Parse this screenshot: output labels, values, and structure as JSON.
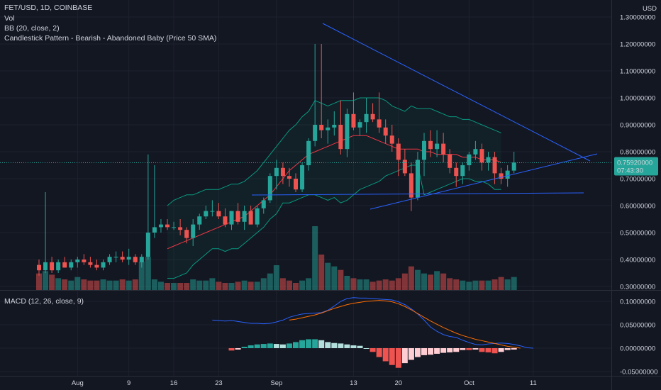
{
  "header": {
    "title": "FET/USD, 1D, COINBASE",
    "indicator_vol": "Vol",
    "indicator_bb": "BB (20, close, 2)",
    "indicator_pattern": "Candlestick Pattern - Bearish - Abandoned Baby (Price 50 SMA)",
    "indicator_macd": "MACD (12, 26, close, 9)"
  },
  "price_axis": {
    "currency": "USD",
    "current_price": "0.75920000",
    "countdown": "07:43:30"
  },
  "colors": {
    "up": "#26a69a",
    "down": "#ef5350",
    "trendline": "#2962ff",
    "bb_band": "#089981",
    "bb_basis": "#f23645",
    "macd_line": "#2962ff",
    "signal_line": "#ff6d00",
    "background": "#131722",
    "grid": "#1e222d"
  },
  "chart_data": [
    {
      "type": "candlestick",
      "title": "FET/USD, 1D, COINBASE",
      "y_unit": "USD",
      "ylim": [
        0.27,
        1.33
      ],
      "yticks": [
        "0.30000000",
        "0.40000000",
        "0.50000000",
        "0.60000000",
        "0.70000000",
        "0.80000000",
        "0.90000000",
        "1.00000000",
        "1.10000000",
        "1.20000000",
        "1.30000000"
      ],
      "ytick_values": [
        0.3,
        0.4,
        0.5,
        0.6,
        0.7,
        0.8,
        0.9,
        1.0,
        1.1,
        1.2,
        1.3
      ],
      "xticks": [
        {
          "label": "Aug",
          "index": 6
        },
        {
          "label": "9",
          "index": 14
        },
        {
          "label": "16",
          "index": 21
        },
        {
          "label": "23",
          "index": 28
        },
        {
          "label": "Sep",
          "index": 37
        },
        {
          "label": "13",
          "index": 49
        },
        {
          "label": "20",
          "index": 56
        },
        {
          "label": "Oct",
          "index": 67
        },
        {
          "label": "11",
          "index": 77
        }
      ],
      "candles": [
        [
          0.38,
          0.4,
          0.34,
          0.36
        ],
        [
          0.36,
          0.65,
          0.35,
          0.39
        ],
        [
          0.39,
          0.41,
          0.35,
          0.36
        ],
        [
          0.36,
          0.4,
          0.35,
          0.39
        ],
        [
          0.39,
          0.41,
          0.37,
          0.37
        ],
        [
          0.37,
          0.4,
          0.36,
          0.39
        ],
        [
          0.39,
          0.41,
          0.37,
          0.4
        ],
        [
          0.4,
          0.42,
          0.38,
          0.39
        ],
        [
          0.39,
          0.41,
          0.37,
          0.38
        ],
        [
          0.38,
          0.4,
          0.36,
          0.37
        ],
        [
          0.37,
          0.4,
          0.36,
          0.39
        ],
        [
          0.39,
          0.42,
          0.38,
          0.41
        ],
        [
          0.41,
          0.43,
          0.39,
          0.41
        ],
        [
          0.41,
          0.43,
          0.39,
          0.4
        ],
        [
          0.4,
          0.44,
          0.38,
          0.41
        ],
        [
          0.41,
          0.42,
          0.38,
          0.39
        ],
        [
          0.39,
          0.42,
          0.37,
          0.41
        ],
        [
          0.41,
          0.79,
          0.4,
          0.5
        ],
        [
          0.5,
          0.75,
          0.48,
          0.52
        ],
        [
          0.52,
          0.55,
          0.5,
          0.53
        ],
        [
          0.53,
          0.55,
          0.51,
          0.52
        ],
        [
          0.52,
          0.54,
          0.51,
          0.52
        ],
        [
          0.52,
          0.55,
          0.49,
          0.51
        ],
        [
          0.51,
          0.52,
          0.46,
          0.48
        ],
        [
          0.48,
          0.55,
          0.45,
          0.53
        ],
        [
          0.53,
          0.57,
          0.51,
          0.56
        ],
        [
          0.56,
          0.6,
          0.55,
          0.58
        ],
        [
          0.58,
          0.62,
          0.56,
          0.58
        ],
        [
          0.58,
          0.61,
          0.55,
          0.56
        ],
        [
          0.56,
          0.59,
          0.52,
          0.53
        ],
        [
          0.53,
          0.58,
          0.51,
          0.58
        ],
        [
          0.58,
          0.61,
          0.53,
          0.54
        ],
        [
          0.54,
          0.6,
          0.51,
          0.58
        ],
        [
          0.58,
          0.6,
          0.53,
          0.53
        ],
        [
          0.53,
          0.6,
          0.52,
          0.59
        ],
        [
          0.59,
          0.63,
          0.57,
          0.62
        ],
        [
          0.62,
          0.72,
          0.61,
          0.71
        ],
        [
          0.71,
          0.77,
          0.66,
          0.74
        ],
        [
          0.74,
          0.76,
          0.68,
          0.71
        ],
        [
          0.71,
          0.74,
          0.67,
          0.7
        ],
        [
          0.7,
          0.72,
          0.65,
          0.66
        ],
        [
          0.66,
          0.76,
          0.65,
          0.75
        ],
        [
          0.75,
          0.85,
          0.73,
          0.84
        ],
        [
          0.84,
          1.2,
          0.82,
          0.9
        ],
        [
          0.9,
          1.2,
          0.85,
          0.88
        ],
        [
          0.88,
          0.92,
          0.83,
          0.89
        ],
        [
          0.89,
          0.95,
          0.86,
          0.9
        ],
        [
          0.9,
          0.99,
          0.79,
          0.81
        ],
        [
          0.81,
          0.96,
          0.78,
          0.94
        ],
        [
          0.94,
          1.02,
          0.88,
          0.89
        ],
        [
          0.89,
          0.92,
          0.86,
          0.91
        ],
        [
          0.91,
          1.0,
          0.87,
          0.94
        ],
        [
          0.94,
          0.98,
          0.91,
          0.92
        ],
        [
          0.92,
          1.02,
          0.87,
          0.89
        ],
        [
          0.89,
          0.92,
          0.83,
          0.86
        ],
        [
          0.86,
          0.9,
          0.8,
          0.83
        ],
        [
          0.83,
          0.85,
          0.71,
          0.77
        ],
        [
          0.77,
          0.81,
          0.71,
          0.72
        ],
        [
          0.72,
          0.76,
          0.58,
          0.63
        ],
        [
          0.63,
          0.8,
          0.62,
          0.77
        ],
        [
          0.77,
          0.87,
          0.71,
          0.84
        ],
        [
          0.84,
          0.88,
          0.78,
          0.81
        ],
        [
          0.81,
          0.88,
          0.78,
          0.83
        ],
        [
          0.83,
          0.87,
          0.76,
          0.79
        ],
        [
          0.79,
          0.81,
          0.72,
          0.74
        ],
        [
          0.74,
          0.76,
          0.67,
          0.71
        ],
        [
          0.71,
          0.76,
          0.68,
          0.75
        ],
        [
          0.75,
          0.8,
          0.73,
          0.79
        ],
        [
          0.79,
          0.84,
          0.77,
          0.81
        ],
        [
          0.81,
          0.83,
          0.73,
          0.76
        ],
        [
          0.76,
          0.8,
          0.73,
          0.78
        ],
        [
          0.78,
          0.8,
          0.68,
          0.72
        ],
        [
          0.72,
          0.74,
          0.68,
          0.7
        ],
        [
          0.7,
          0.75,
          0.67,
          0.73
        ],
        [
          0.73,
          0.8,
          0.72,
          0.76
        ]
      ],
      "bb_upper": [
        null,
        null,
        null,
        null,
        null,
        null,
        null,
        null,
        null,
        null,
        null,
        null,
        null,
        null,
        null,
        null,
        null,
        null,
        null,
        null,
        0.6,
        0.62,
        0.63,
        0.64,
        0.64,
        0.65,
        0.66,
        0.66,
        0.66,
        0.67,
        0.68,
        0.68,
        0.69,
        0.71,
        0.73,
        0.76,
        0.79,
        0.82,
        0.85,
        0.88,
        0.9,
        0.93,
        0.95,
        0.99,
        0.98,
        0.97,
        0.98,
        0.99,
        0.99,
        0.99,
        1.0,
        1.0,
        1.0,
        1.0,
        0.99,
        0.97,
        0.96,
        0.95,
        0.97,
        0.96,
        0.96,
        0.96,
        0.95,
        0.94,
        0.93,
        0.93,
        0.92,
        0.92,
        0.91,
        0.9,
        0.89,
        0.88,
        0.87
      ],
      "bb_basis": [
        null,
        null,
        null,
        null,
        null,
        null,
        null,
        null,
        null,
        null,
        null,
        null,
        null,
        null,
        null,
        null,
        null,
        null,
        null,
        null,
        0.44,
        0.45,
        0.46,
        0.47,
        0.48,
        0.49,
        0.5,
        0.51,
        0.52,
        0.53,
        0.54,
        0.55,
        0.56,
        0.58,
        0.6,
        0.62,
        0.64,
        0.67,
        0.7,
        0.73,
        0.75,
        0.77,
        0.79,
        0.8,
        0.81,
        0.82,
        0.83,
        0.84,
        0.85,
        0.86,
        0.86,
        0.86,
        0.85,
        0.84,
        0.83,
        0.82,
        0.81,
        0.81,
        0.81,
        0.81,
        0.8,
        0.8,
        0.79,
        0.79,
        0.79,
        0.79,
        0.78,
        0.78,
        0.78,
        0.77,
        0.77,
        0.77,
        0.76
      ],
      "bb_lower": [
        null,
        null,
        null,
        null,
        null,
        null,
        null,
        null,
        null,
        null,
        null,
        null,
        null,
        null,
        null,
        null,
        null,
        null,
        null,
        null,
        0.33,
        0.33,
        0.34,
        0.35,
        0.38,
        0.4,
        0.42,
        0.44,
        0.44,
        0.43,
        0.44,
        0.44,
        0.46,
        0.48,
        0.5,
        0.52,
        0.55,
        0.57,
        0.61,
        0.61,
        0.62,
        0.63,
        0.64,
        0.64,
        0.63,
        0.62,
        0.63,
        0.61,
        0.62,
        0.64,
        0.66,
        0.67,
        0.68,
        0.69,
        0.71,
        0.72,
        0.73,
        0.74,
        0.75,
        0.75,
        0.64,
        0.65,
        0.66,
        0.67,
        0.68,
        0.69,
        0.7,
        0.7,
        0.69,
        0.69,
        0.68,
        0.66,
        0.66
      ]
    },
    {
      "type": "bar",
      "title": "Vol",
      "values": [
        14,
        16,
        13,
        10,
        9,
        8,
        11,
        9,
        8,
        8,
        9,
        8,
        8,
        9,
        8,
        9,
        24,
        28,
        9,
        7,
        6,
        6,
        6,
        6,
        9,
        8,
        8,
        10,
        7,
        6,
        6,
        7,
        8,
        7,
        7,
        10,
        14,
        21,
        10,
        8,
        6,
        8,
        10,
        54,
        30,
        23,
        20,
        17,
        12,
        10,
        9,
        9,
        7,
        8,
        9,
        8,
        10,
        14,
        20,
        17,
        14,
        13,
        16,
        14,
        10,
        9,
        8,
        7,
        8,
        8,
        8,
        9,
        11,
        9,
        11
      ],
      "ylim": [
        0,
        60
      ]
    },
    {
      "type": "line",
      "title": "MACD (12, 26, close, 9)",
      "ylim": [
        -0.06,
        0.115
      ],
      "yticks": [
        "0.10000000",
        "0.05000000",
        "0.00000000",
        "-0.05000000"
      ],
      "ytick_values": [
        0.1,
        0.05,
        0.0,
        -0.05
      ],
      "series": [
        {
          "key": "macd",
          "start": 27,
          "values": [
            0.06,
            0.059,
            0.058,
            0.059,
            0.057,
            0.055,
            0.053,
            0.053,
            0.052,
            0.053,
            0.056,
            0.06,
            0.066,
            0.07,
            0.073,
            0.074,
            0.075,
            0.076,
            0.081,
            0.09,
            0.1,
            0.106,
            0.108,
            0.107,
            0.107,
            0.106,
            0.105,
            0.104,
            0.103,
            0.099,
            0.093,
            0.084,
            0.073,
            0.06,
            0.045,
            0.036,
            0.029,
            0.025,
            0.023,
            0.017,
            0.012,
            0.008,
            0.007,
            0.009,
            0.01,
            0.011,
            0.01,
            0.008,
            0.005,
            0.001,
            0.0
          ]
        },
        {
          "key": "signal",
          "start": 39,
          "values": [
            0.06,
            0.062,
            0.065,
            0.068,
            0.071,
            0.075,
            0.08,
            0.085,
            0.089,
            0.093,
            0.096,
            0.098,
            0.1,
            0.101,
            0.102,
            0.101,
            0.099,
            0.095,
            0.089,
            0.082,
            0.074,
            0.066,
            0.058,
            0.051,
            0.044,
            0.038,
            0.032,
            0.027,
            0.023,
            0.019,
            0.016,
            0.013,
            0.01,
            0.007,
            0.004,
            0.002,
            0.0
          ]
        }
      ],
      "histogram": {
        "start": 30,
        "values": [
          -0.005,
          -0.003,
          0.003,
          0.006,
          0.008,
          0.009,
          0.01,
          0.009,
          0.008,
          0.01,
          0.013,
          0.017,
          0.019,
          0.019,
          0.017,
          0.013,
          0.011,
          0.01,
          0.008,
          0.006,
          0.005,
          0.0,
          -0.008,
          -0.019,
          -0.028,
          -0.036,
          -0.042,
          -0.032,
          -0.025,
          -0.019,
          -0.015,
          -0.014,
          -0.012,
          -0.01,
          -0.009,
          -0.008,
          -0.004,
          -0.004,
          -0.003,
          -0.008,
          -0.009,
          -0.011,
          -0.008,
          -0.004,
          -0.003
        ]
      }
    }
  ]
}
